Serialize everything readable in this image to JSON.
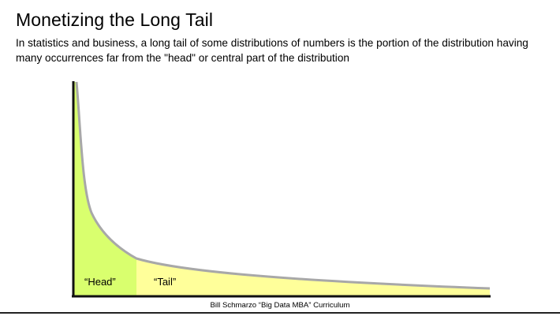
{
  "slide": {
    "title": "Monetizing the Long Tail",
    "subtitle": "In statistics and business, a long tail of some distributions of numbers is the portion of the distribution having many occurrences far from the \"head\" or central part of the distribution",
    "caption": "Bill Schmarzo “Big Data MBA” Curriculum"
  },
  "diagram": {
    "head_label": "“Head”",
    "tail_label": "“Tail”",
    "colors": {
      "head_fill": "#d9ff6e",
      "tail_fill": "#ffff9a",
      "curve": "#a8a8a8",
      "axis": "#111111"
    }
  }
}
